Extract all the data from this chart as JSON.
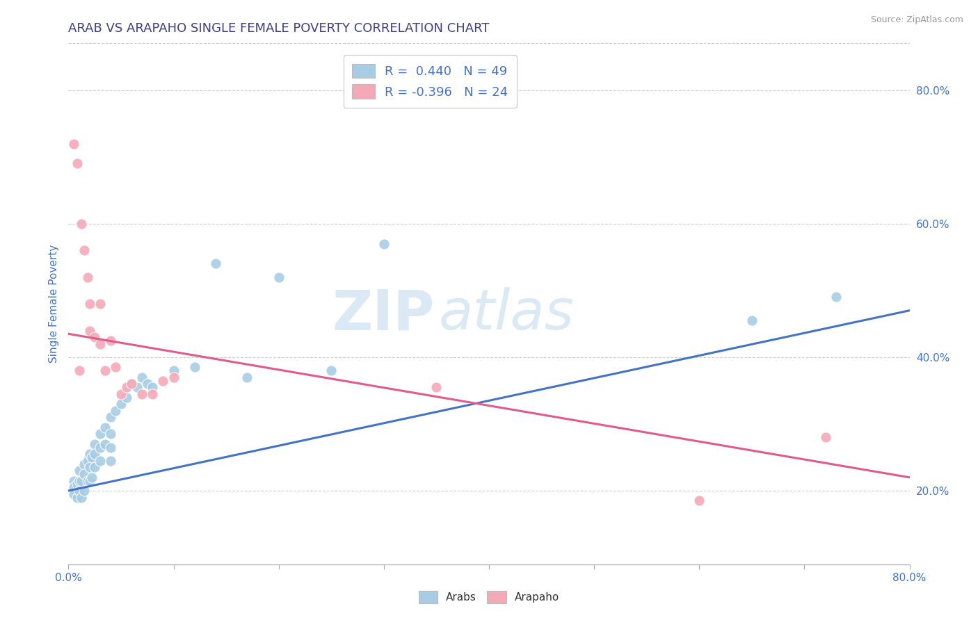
{
  "title": "ARAB VS ARAPAHO SINGLE FEMALE POVERTY CORRELATION CHART",
  "source": "Source: ZipAtlas.com",
  "ylabel": "Single Female Poverty",
  "legend_labels": [
    "Arabs",
    "Arapaho"
  ],
  "arab_R": "0.440",
  "arab_N": "49",
  "arapaho_R": "-0.396",
  "arapaho_N": "24",
  "arab_color": "#a8cce4",
  "arapaho_color": "#f4a9b8",
  "arab_line_color": "#4472c4",
  "arapaho_line_color": "#e05a8a",
  "background_color": "#ffffff",
  "watermark_zip": "ZIP",
  "watermark_atlas": "atlas",
  "title_color": "#404080",
  "axis_label_color": "#4472c4",
  "tick_label_color": "#666666",
  "ytick_labels": [
    "20.0%",
    "40.0%",
    "60.0%",
    "80.0%"
  ],
  "ytick_values": [
    0.2,
    0.4,
    0.6,
    0.8
  ],
  "xlim": [
    0.0,
    0.8
  ],
  "ylim": [
    0.09,
    0.87
  ],
  "arab_x": [
    0.005,
    0.005,
    0.005,
    0.008,
    0.008,
    0.01,
    0.01,
    0.01,
    0.012,
    0.012,
    0.015,
    0.015,
    0.015,
    0.018,
    0.018,
    0.02,
    0.02,
    0.02,
    0.022,
    0.022,
    0.025,
    0.025,
    0.025,
    0.03,
    0.03,
    0.03,
    0.035,
    0.035,
    0.04,
    0.04,
    0.04,
    0.04,
    0.045,
    0.05,
    0.055,
    0.06,
    0.065,
    0.07,
    0.075,
    0.08,
    0.1,
    0.12,
    0.14,
    0.17,
    0.2,
    0.25,
    0.3,
    0.65,
    0.73
  ],
  "arab_y": [
    0.215,
    0.205,
    0.195,
    0.21,
    0.19,
    0.23,
    0.215,
    0.2,
    0.215,
    0.19,
    0.24,
    0.225,
    0.2,
    0.245,
    0.215,
    0.255,
    0.235,
    0.215,
    0.25,
    0.22,
    0.27,
    0.255,
    0.235,
    0.285,
    0.265,
    0.245,
    0.295,
    0.27,
    0.31,
    0.285,
    0.265,
    0.245,
    0.32,
    0.33,
    0.34,
    0.36,
    0.355,
    0.37,
    0.36,
    0.355,
    0.38,
    0.385,
    0.54,
    0.37,
    0.52,
    0.38,
    0.57,
    0.455,
    0.49
  ],
  "arapaho_x": [
    0.005,
    0.008,
    0.01,
    0.012,
    0.015,
    0.018,
    0.02,
    0.02,
    0.025,
    0.03,
    0.03,
    0.035,
    0.04,
    0.045,
    0.05,
    0.055,
    0.06,
    0.07,
    0.08,
    0.09,
    0.1,
    0.35,
    0.6,
    0.72
  ],
  "arapaho_y": [
    0.72,
    0.69,
    0.38,
    0.6,
    0.56,
    0.52,
    0.48,
    0.44,
    0.43,
    0.48,
    0.42,
    0.38,
    0.425,
    0.385,
    0.345,
    0.355,
    0.36,
    0.345,
    0.345,
    0.365,
    0.37,
    0.355,
    0.185,
    0.28
  ],
  "arab_trend_x": [
    0.0,
    0.8
  ],
  "arab_trend_y": [
    0.2,
    0.47
  ],
  "arapaho_trend_x": [
    0.0,
    0.8
  ],
  "arapaho_trend_y": [
    0.435,
    0.22
  ]
}
